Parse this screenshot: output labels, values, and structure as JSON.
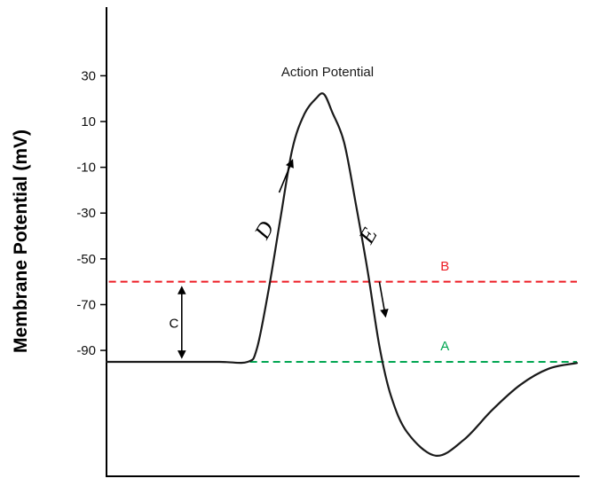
{
  "chart_data": {
    "type": "line",
    "title": "Action Potential",
    "xlabel": "",
    "ylabel": "Membrane Potential (mV)",
    "xlim": [
      0,
      10
    ],
    "ylim": [
      -145,
      60
    ],
    "yticks": [
      30,
      10,
      -10,
      -30,
      -50,
      -70,
      -90
    ],
    "grid": false,
    "legend": "none",
    "curve_color": "#1a1a1a",
    "series": [
      {
        "name": "membrane-potential",
        "points": [
          [
            0,
            -95
          ],
          [
            1.2,
            -95
          ],
          [
            2.4,
            -95
          ],
          [
            3.0,
            -95
          ],
          [
            3.2,
            -89
          ],
          [
            3.45,
            -63
          ],
          [
            3.7,
            -32
          ],
          [
            3.95,
            -2
          ],
          [
            4.2,
            13
          ],
          [
            4.45,
            20
          ],
          [
            4.62,
            22
          ],
          [
            4.8,
            14
          ],
          [
            5.05,
            1
          ],
          [
            5.3,
            -26
          ],
          [
            5.55,
            -55
          ],
          [
            5.8,
            -88
          ],
          [
            6.05,
            -110
          ],
          [
            6.4,
            -126
          ],
          [
            7.0,
            -136
          ],
          [
            7.6,
            -129
          ],
          [
            8.2,
            -116
          ],
          [
            8.8,
            -105
          ],
          [
            9.4,
            -98
          ],
          [
            10,
            -95.5
          ]
        ]
      }
    ],
    "reference_lines": [
      {
        "id": "threshold",
        "label": "B",
        "value": -60,
        "color": "#ed1c24",
        "t_start": 0.05,
        "t_end": 10,
        "label_t": 7.1,
        "label_v": -55
      },
      {
        "id": "resting-potential",
        "label": "A",
        "value": -95,
        "color": "#00a651",
        "t_start": 3.05,
        "t_end": 10,
        "label_t": 7.1,
        "label_v": -90
      }
    ],
    "annotations": [
      {
        "id": "C",
        "text": "C",
        "color": "#000000",
        "t": 1.33,
        "v": -80,
        "rotate": 0,
        "font": "sans"
      },
      {
        "id": "D",
        "text": "D",
        "color": "#000000",
        "t": 3.4,
        "v": -42,
        "rotate": -60,
        "font": "serif-italic"
      },
      {
        "id": "E",
        "text": "E",
        "color": "#000000",
        "t": 5.62,
        "v": -44,
        "rotate": -60,
        "font": "serif-italic"
      }
    ],
    "arrows": [
      {
        "id": "depolarization-arrow",
        "t1": 3.67,
        "v1": -21,
        "t2": 3.95,
        "v2": -7,
        "heads": "end"
      },
      {
        "id": "repolarization-arrow",
        "t1": 5.8,
        "v1": -60,
        "t2": 5.93,
        "v2": -75,
        "heads": "end"
      },
      {
        "id": "resting-to-threshold-arrow",
        "t1": 1.6,
        "v1": -62.5,
        "t2": 1.6,
        "v2": -93,
        "heads": "both"
      }
    ]
  }
}
